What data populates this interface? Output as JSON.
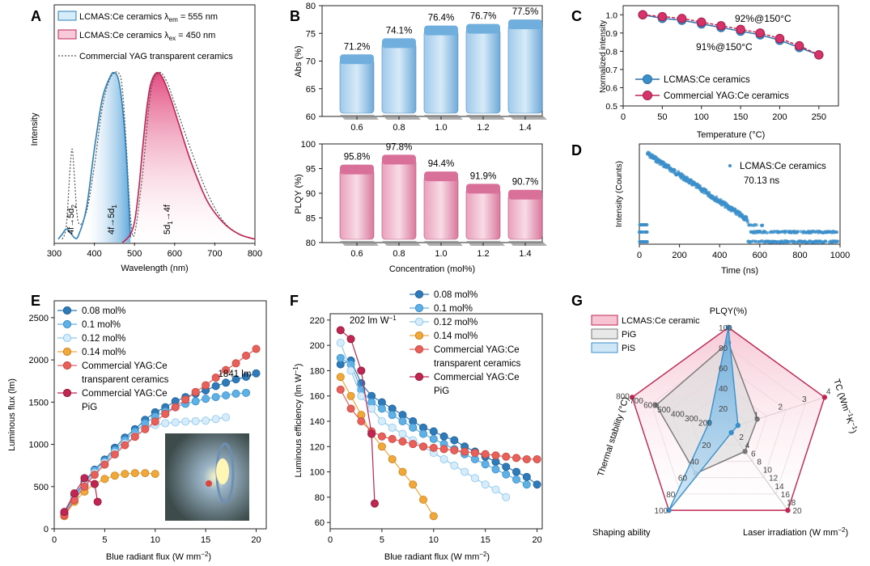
{
  "colors": {
    "blue": "#3b8fc9",
    "blue_light": "#8cc8ef",
    "blue_pale": "#c9e6f7",
    "pink": "#d5336a",
    "pink_light": "#f0a6bf",
    "orange": "#f0a83a",
    "salmon": "#e8605a",
    "crimson": "#c02652",
    "navy": "#2f6fa8",
    "gray": "#777777"
  },
  "chart_data": [
    {
      "panel": "A",
      "type": "line",
      "xlabel": "Wavelength (nm)",
      "ylabel": "Intensity",
      "xlim": [
        300,
        800
      ],
      "x_ticks": [
        300,
        400,
        500,
        600,
        700,
        800
      ],
      "legend": [
        "LCMAS:Ce ceramics λem = 555 nm",
        "LCMAS:Ce ceramics λex = 450 nm",
        "Commercial YAG transparent ceramics"
      ],
      "annotations": [
        "4f→5d2",
        "4f→5d1",
        "5d1→4f"
      ],
      "series": [
        {
          "name": "LCMAS:Ce ceramics λem = 555 nm",
          "x": [
            310,
            320,
            330,
            340,
            350,
            360,
            380,
            400,
            420,
            440,
            450,
            460,
            470,
            480,
            490
          ],
          "y": [
            0.02,
            0.05,
            0.08,
            0.06,
            0.03,
            0.04,
            0.2,
            0.55,
            0.85,
            0.98,
            1.0,
            0.96,
            0.8,
            0.5,
            0.03
          ]
        },
        {
          "name": "LCMAS:Ce ceramics λex = 450 nm",
          "x": [
            470,
            480,
            490,
            500,
            510,
            520,
            530,
            540,
            555,
            570,
            590,
            610,
            640,
            680,
            720,
            760,
            800
          ],
          "y": [
            0.0,
            0.02,
            0.05,
            0.12,
            0.3,
            0.55,
            0.78,
            0.93,
            1.0,
            0.97,
            0.85,
            0.7,
            0.48,
            0.25,
            0.12,
            0.05,
            0.02
          ]
        },
        {
          "name": "Commercial YAG transparent ceramics",
          "x": [
            320,
            330,
            340,
            345,
            350,
            360,
            380,
            400,
            420,
            440,
            460,
            470,
            480,
            490,
            500,
            520,
            540,
            560,
            580,
            600,
            640,
            680,
            720,
            760,
            800
          ],
          "y": [
            0.02,
            0.1,
            0.45,
            0.55,
            0.4,
            0.12,
            0.18,
            0.45,
            0.8,
            0.97,
            1.0,
            0.9,
            0.55,
            0.15,
            0.05,
            0.4,
            0.88,
            1.0,
            0.95,
            0.82,
            0.55,
            0.3,
            0.13,
            0.05,
            0.02
          ]
        }
      ]
    },
    {
      "panel": "B",
      "type": "bar",
      "categories": [
        "0.6",
        "0.8",
        "1.0",
        "1.2",
        "1.4"
      ],
      "xlabel": "Concentration (mol%)",
      "sub": [
        {
          "ylabel": "Abs (%)",
          "ylim": [
            60,
            80
          ],
          "y_ticks": [
            60,
            65,
            70,
            75,
            80
          ],
          "values": [
            71.2,
            74.1,
            76.4,
            76.7,
            77.5
          ],
          "labels": [
            "71.2%",
            "74.1%",
            "76.4%",
            "76.7%",
            "77.5%"
          ]
        },
        {
          "ylabel": "PLQY (%)",
          "ylim": [
            80,
            100
          ],
          "y_ticks": [
            80,
            85,
            90,
            95,
            100
          ],
          "values": [
            95.8,
            97.8,
            94.4,
            91.9,
            90.7
          ],
          "labels": [
            "95.8%",
            "97.8%",
            "94.4%",
            "91.9%",
            "90.7%"
          ]
        }
      ]
    },
    {
      "panel": "C",
      "type": "line",
      "xlabel": "Temperature (°C)",
      "ylabel": "Normalized intensity",
      "xlim": [
        0,
        275
      ],
      "ylim": [
        0.5,
        1.05
      ],
      "x_ticks": [
        0,
        50,
        100,
        150,
        200,
        250
      ],
      "y_ticks": [
        0.5,
        0.6,
        0.7,
        0.8,
        0.9,
        1.0
      ],
      "annotations": [
        "92%@150°C",
        "91%@150°C"
      ],
      "series": [
        {
          "name": "LCMAS:Ce ceramics",
          "x": [
            25,
            50,
            75,
            100,
            125,
            150,
            175,
            200,
            225,
            250
          ],
          "y": [
            1.0,
            0.98,
            0.97,
            0.95,
            0.93,
            0.91,
            0.89,
            0.86,
            0.82,
            0.78
          ]
        },
        {
          "name": "Commercial YAG:Ce ceramics",
          "x": [
            25,
            50,
            75,
            100,
            125,
            150,
            175,
            200,
            225,
            250
          ],
          "y": [
            1.0,
            0.99,
            0.98,
            0.96,
            0.94,
            0.92,
            0.9,
            0.87,
            0.83,
            0.78
          ]
        }
      ]
    },
    {
      "panel": "D",
      "type": "scatter",
      "xlabel": "Time (ns)",
      "ylabel": "Intensity (Counts)",
      "xlim": [
        0,
        1000
      ],
      "x_ticks": [
        0,
        200,
        400,
        600,
        800,
        1000
      ],
      "log_y": true,
      "legend": [
        "LCMAS:Ce ceramics",
        "70.13 ns"
      ],
      "decay_ns": 70.13
    },
    {
      "panel": "E",
      "type": "line",
      "xlabel": "Blue radiant flux (W mm⁻²)",
      "ylabel": "Luminous flux (lm)",
      "xlim": [
        0,
        21
      ],
      "ylim": [
        0,
        2700
      ],
      "x_ticks": [
        0,
        5,
        10,
        15,
        20
      ],
      "y_ticks": [
        0,
        500,
        1000,
        1500,
        2000,
        2500
      ],
      "annotations": [
        "1841 lm"
      ],
      "series": [
        {
          "name": "0.08 mol%",
          "x": [
            1,
            2,
            3,
            4,
            5,
            6,
            7,
            8,
            9,
            10,
            11,
            12,
            13,
            14,
            15,
            16,
            17,
            18,
            19,
            20
          ],
          "y": [
            180,
            390,
            560,
            700,
            820,
            960,
            1080,
            1180,
            1290,
            1380,
            1440,
            1510,
            1560,
            1600,
            1640,
            1690,
            1730,
            1770,
            1800,
            1841
          ]
        },
        {
          "name": "0.1 mol%",
          "x": [
            1,
            2,
            3,
            4,
            5,
            6,
            7,
            8,
            9,
            10,
            11,
            12,
            13,
            14,
            15,
            16,
            17,
            18,
            19
          ],
          "y": [
            170,
            380,
            540,
            690,
            800,
            930,
            1050,
            1150,
            1250,
            1330,
            1390,
            1440,
            1480,
            1510,
            1540,
            1560,
            1580,
            1600,
            1610
          ]
        },
        {
          "name": "0.12 mol%",
          "x": [
            1,
            2,
            3,
            4,
            5,
            6,
            7,
            8,
            9,
            10,
            11,
            12,
            13,
            14,
            15,
            16,
            17
          ],
          "y": [
            160,
            360,
            520,
            660,
            780,
            900,
            1010,
            1100,
            1180,
            1230,
            1250,
            1260,
            1270,
            1275,
            1280,
            1300,
            1320
          ]
        },
        {
          "name": "0.14 mol%",
          "x": [
            1,
            2,
            3,
            4,
            5,
            6,
            7,
            8,
            9,
            10
          ],
          "y": [
            150,
            320,
            440,
            530,
            590,
            630,
            650,
            660,
            660,
            650
          ]
        },
        {
          "name": "Commercial YAG:Ce transparent ceramics",
          "x": [
            1,
            2,
            3,
            4,
            5,
            6,
            7,
            8,
            9,
            10,
            11,
            12,
            13,
            14,
            15,
            16,
            17,
            18,
            19,
            20
          ],
          "y": [
            160,
            340,
            500,
            640,
            760,
            880,
            990,
            1090,
            1180,
            1270,
            1360,
            1440,
            1530,
            1620,
            1700,
            1790,
            1880,
            1960,
            2050,
            2130
          ]
        },
        {
          "name": "Commercial YAG:Ce PiG",
          "x": [
            1,
            2,
            3,
            4,
            4.3
          ],
          "y": [
            200,
            420,
            600,
            530,
            320
          ]
        }
      ]
    },
    {
      "panel": "F",
      "type": "line",
      "xlabel": "Blue radiant flux (W mm⁻²)",
      "ylabel": "Luminous efficiency (lm W⁻¹)",
      "xlim": [
        0,
        20.5
      ],
      "ylim": [
        55,
        225
      ],
      "x_ticks": [
        0,
        5,
        10,
        15,
        20
      ],
      "y_ticks": [
        60,
        80,
        100,
        120,
        140,
        160,
        180,
        200,
        220
      ],
      "annotations": [
        "202 lm W⁻¹"
      ],
      "series": [
        {
          "name": "0.08 mol%",
          "x": [
            1,
            2,
            3,
            4,
            5,
            6,
            7,
            8,
            9,
            10,
            11,
            12,
            13,
            14,
            15,
            16,
            17,
            18,
            19,
            20
          ],
          "y": [
            185,
            188,
            170,
            160,
            155,
            150,
            145,
            140,
            135,
            132,
            128,
            125,
            120,
            116,
            112,
            108,
            104,
            100,
            96,
            90
          ]
        },
        {
          "name": "0.1 mol%",
          "x": [
            1,
            2,
            3,
            4,
            5,
            6,
            7,
            8,
            9,
            10,
            11,
            12,
            13,
            14,
            15,
            16,
            17,
            18,
            19
          ],
          "y": [
            190,
            185,
            165,
            155,
            150,
            145,
            140,
            135,
            130,
            126,
            122,
            118,
            114,
            110,
            106,
            102,
            98,
            94,
            90
          ]
        },
        {
          "name": "0.12 mol%",
          "x": [
            1,
            2,
            3,
            4,
            5,
            6,
            7,
            8,
            9,
            10,
            11,
            12,
            13,
            14,
            15,
            16,
            17
          ],
          "y": [
            202,
            180,
            160,
            150,
            140,
            135,
            130,
            125,
            120,
            115,
            110,
            105,
            100,
            95,
            90,
            86,
            80
          ]
        },
        {
          "name": "0.14 mol%",
          "x": [
            1,
            2,
            3,
            4,
            5,
            6,
            7,
            8,
            9,
            10
          ],
          "y": [
            175,
            160,
            145,
            130,
            120,
            110,
            100,
            90,
            78,
            65
          ]
        },
        {
          "name": "Commercial YAG:Ce transparent ceramics",
          "x": [
            1,
            2,
            3,
            4,
            5,
            6,
            7,
            8,
            9,
            10,
            11,
            12,
            13,
            14,
            15,
            16,
            17,
            18,
            19,
            20
          ],
          "y": [
            165,
            150,
            140,
            132,
            128,
            126,
            124,
            122,
            120,
            119,
            118,
            117,
            116,
            115,
            114,
            113,
            112,
            111,
            110,
            110
          ]
        },
        {
          "name": "Commercial YAG:Ce PiG",
          "x": [
            1,
            2,
            3,
            4,
            4.3
          ],
          "y": [
            212,
            205,
            180,
            130,
            75
          ]
        }
      ]
    },
    {
      "panel": "G",
      "type": "radar",
      "axes": [
        "PLQY(%)",
        "TC (Wm⁻¹K⁻¹)",
        "Laser irradiation (W mm⁻²)",
        "Shaping ability",
        "Thermal stability (°C)"
      ],
      "axis_ticks": [
        [
          "20",
          "40",
          "60",
          "80",
          "100"
        ],
        [
          "1",
          "2",
          "3",
          "4"
        ],
        [
          "2",
          "4",
          "6",
          "8",
          "10",
          "12",
          "14",
          "16",
          "18",
          "20"
        ],
        [
          "20",
          "40",
          "60",
          "80",
          "100"
        ],
        [
          "200",
          "300",
          "400",
          "500",
          "600",
          "700",
          "800"
        ]
      ],
      "legend": [
        "LCMAS:Ce ceramic",
        "PiG",
        "PiS"
      ],
      "series": [
        {
          "name": "LCMAS:Ce ceramic",
          "values": [
            1.0,
            1.0,
            1.0,
            1.0,
            1.0
          ]
        },
        {
          "name": "PiG",
          "values": [
            0.85,
            0.3,
            0.28,
            0.55,
            0.75
          ]
        },
        {
          "name": "PiS",
          "values": [
            1.0,
            0.1,
            0.05,
            1.0,
            0.2
          ]
        }
      ]
    }
  ],
  "panels": {
    "a": {
      "label": "A",
      "xlabel": "Wavelength (nm)",
      "ylabel": "Intensity",
      "legend": [
        "LCMAS:Ce ceramics λ",
        "em",
        " = 555 nm",
        "LCMAS:Ce ceramics λ",
        "ex",
        " = 450 nm",
        "Commercial YAG transparent ceramics"
      ],
      "ann1": "4f→5d",
      "ann1sub": "2",
      "ann2": "4f→5d",
      "ann2sub": "1",
      "ann3a": "5d",
      "ann3sub": "1",
      "ann3b": "→4f"
    },
    "b": {
      "label": "B",
      "xlabel": "Concentration (mol%)",
      "ylabel_top": "Abs (%)",
      "ylabel_bot": "PLQY (%)"
    },
    "c": {
      "label": "C",
      "xlabel": "Temperature (°C)",
      "ylabel": "Normalized intensity",
      "ann1": "92%@150°C",
      "ann2": "91%@150°C",
      "legend": [
        "LCMAS:Ce ceramics",
        "Commercial YAG:Ce ceramics"
      ]
    },
    "d": {
      "label": "D",
      "xlabel": "Time (ns)",
      "ylabel": "Intensity (Counts)",
      "legend1": "LCMAS:Ce ceramics",
      "legend2": "70.13 ns"
    },
    "e": {
      "label": "E",
      "xlabel": "Blue radiant flux (W mm",
      "xlabel_sup": "−2",
      "ylabel": "Luminous flux (lm)",
      "ann": "1841 lm",
      "legend": [
        "0.08 mol%",
        "0.1 mol%",
        "0.12 mol%",
        "0.14 mol%",
        "Commercial YAG:Ce",
        "transparent ceramics",
        "Commercial YAG:Ce",
        "PiG"
      ]
    },
    "f": {
      "label": "F",
      "xlabel": "Blue radiant flux (W mm",
      "xlabel_sup": "−2",
      "ylabel": "Luminous efficiency (lm W",
      "ylabel_sup": "−1",
      "ann": "202 lm W",
      "ann_sup": "−1",
      "legend": [
        "0.08 mol%",
        "0.1 mol%",
        "0.12 mol%",
        "0.14 mol%",
        "Commercial YAG:Ce",
        "transparent ceramics",
        "Commercial YAG:Ce",
        "PiG"
      ]
    },
    "g": {
      "label": "G",
      "legend": [
        "LCMAS:Ce ceramic",
        "PiG",
        "PiS"
      ],
      "axis_titles": [
        "PLQY(%)",
        "TC (Wm",
        "−1",
        "K",
        "−1",
        ")",
        "Laser irradiation (W mm",
        "−2",
        ")",
        "Shaping ability",
        "Thermal stability (°C)"
      ]
    }
  }
}
